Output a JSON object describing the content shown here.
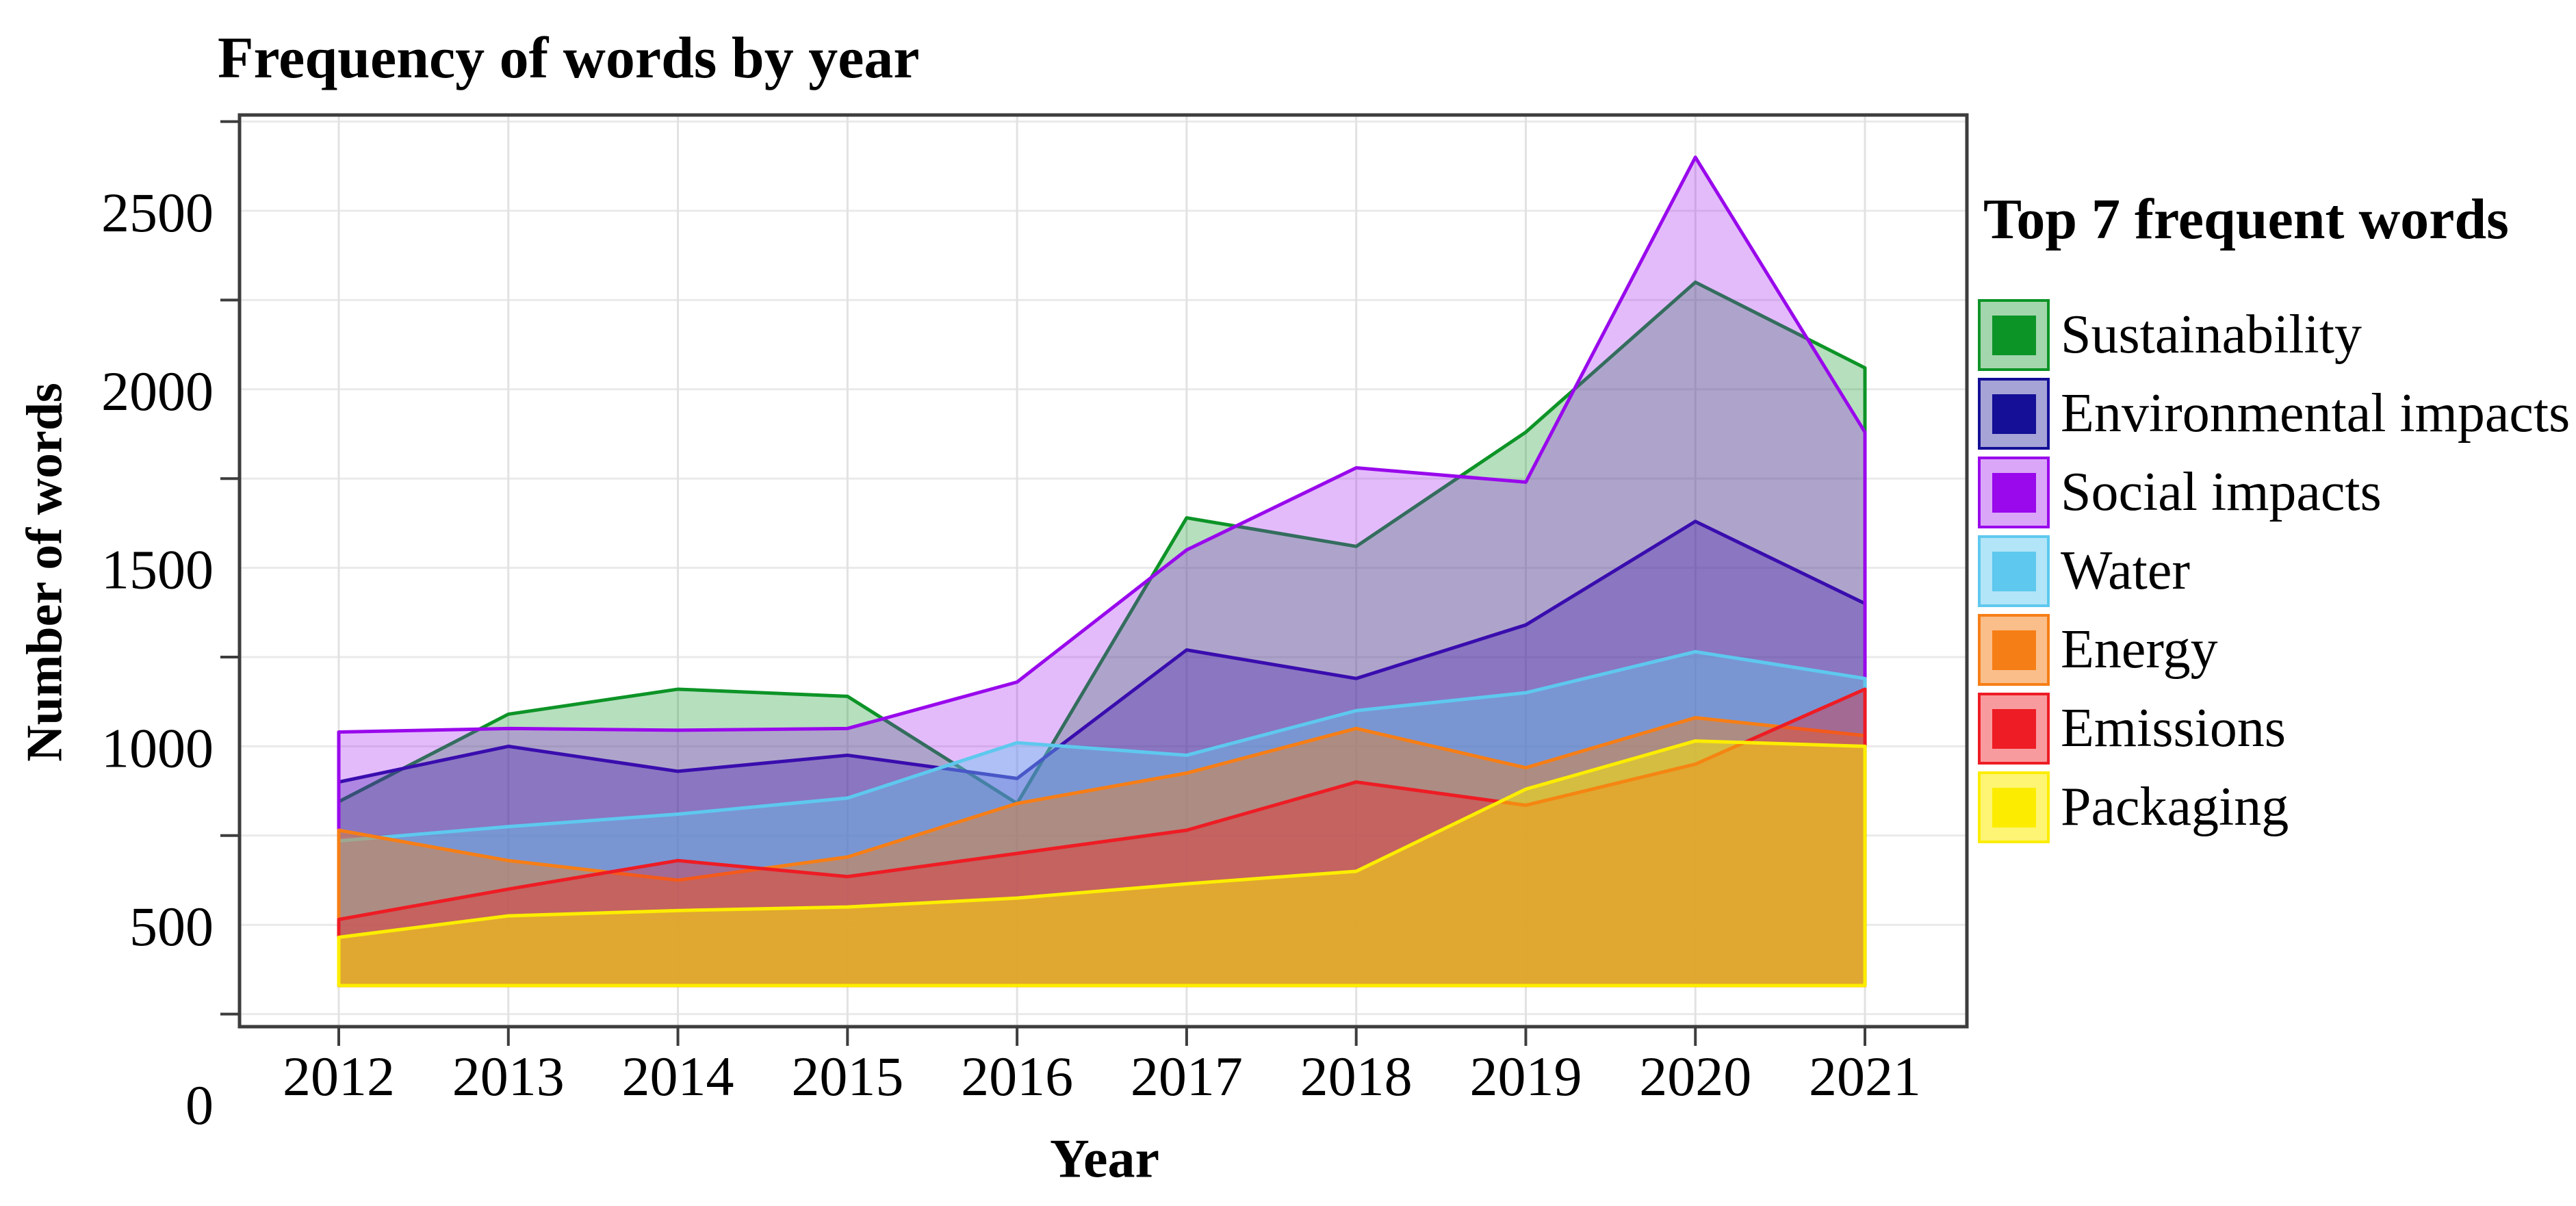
{
  "title": "Frequency of words by year",
  "y_axis": {
    "label": "Number of words",
    "tick_labels": [
      "0",
      "500",
      "1000",
      "1500",
      "2000",
      "2500"
    ]
  },
  "x_axis": {
    "label": "Year",
    "tick_labels": [
      "2012",
      "2013",
      "2014",
      "2015",
      "2016",
      "2017",
      "2018",
      "2019",
      "2020",
      "2021"
    ]
  },
  "legend": {
    "title": "Top 7 frequent words",
    "items": [
      {
        "label": "Sustainability",
        "color": "#0d9427",
        "fill_opacity": 0.3
      },
      {
        "label": "Environmental impacts",
        "color": "#140f96",
        "fill_opacity": 0.3
      },
      {
        "label": "Social impacts",
        "color": "#9909ec",
        "fill_opacity": 0.28
      },
      {
        "label": "Water",
        "color": "#5ec8ee",
        "fill_opacity": 0.4
      },
      {
        "label": "Energy",
        "color": "#f67e16",
        "fill_opacity": 0.42
      },
      {
        "label": "Emissions",
        "color": "#ee1c24",
        "fill_opacity": 0.36
      },
      {
        "label": "Packaging",
        "color": "#fced00",
        "fill_opacity": 0.5
      }
    ]
  },
  "chart_data": {
    "type": "area",
    "title": "Frequency of words by year",
    "xlabel": "Year",
    "ylabel": "Number of words",
    "x": [
      2012,
      2013,
      2014,
      2015,
      2016,
      2017,
      2018,
      2019,
      2020,
      2021
    ],
    "ylim": [
      0,
      2800
    ],
    "area_baseline": 330,
    "grid": "on",
    "gridline_step": 250,
    "legend_position": "right",
    "series": [
      {
        "name": "Sustainability",
        "color": "#0d9427",
        "fill_opacity": 0.3,
        "values": [
          845,
          1090,
          1160,
          1140,
          840,
          1640,
          1560,
          1880,
          2300,
          2060
        ]
      },
      {
        "name": "Environmental impacts",
        "color": "#140f96",
        "fill_opacity": 0.3,
        "values": [
          900,
          1000,
          930,
          975,
          910,
          1270,
          1190,
          1340,
          1630,
          1400
        ]
      },
      {
        "name": "Social impacts",
        "color": "#9909ec",
        "fill_opacity": 0.28,
        "values": [
          1040,
          1050,
          1045,
          1050,
          1180,
          1550,
          1780,
          1740,
          2650,
          1880
        ]
      },
      {
        "name": "Water",
        "color": "#5ec8ee",
        "fill_opacity": 0.4,
        "values": [
          735,
          775,
          810,
          855,
          1010,
          975,
          1100,
          1150,
          1265,
          1190
        ]
      },
      {
        "name": "Energy",
        "color": "#f67e16",
        "fill_opacity": 0.42,
        "values": [
          765,
          680,
          625,
          690,
          840,
          925,
          1050,
          940,
          1080,
          1030
        ]
      },
      {
        "name": "Emissions",
        "color": "#ee1c24",
        "fill_opacity": 0.36,
        "values": [
          515,
          600,
          680,
          635,
          700,
          765,
          900,
          835,
          950,
          1160
        ]
      },
      {
        "name": "Packaging",
        "color": "#fced00",
        "fill_opacity": 0.5,
        "values": [
          465,
          525,
          540,
          550,
          575,
          615,
          650,
          880,
          1015,
          1000
        ]
      }
    ]
  }
}
